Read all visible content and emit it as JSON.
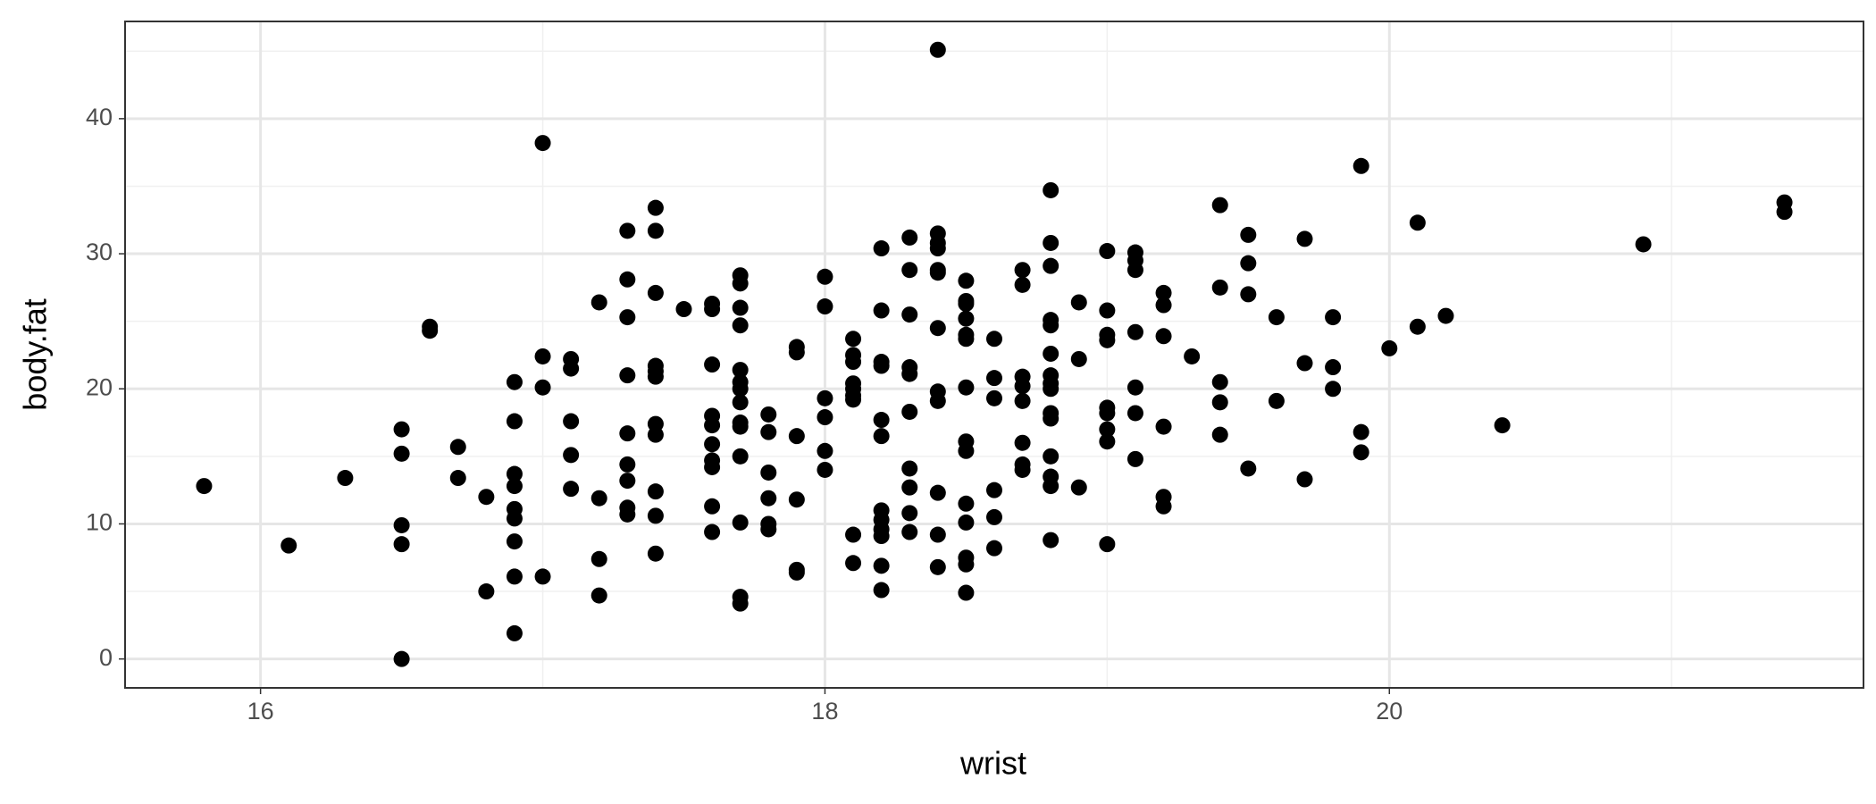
{
  "chart_data": {
    "type": "scatter",
    "x_label": "wrist",
    "y_label": "body.fat",
    "xlim": [
      15.52,
      21.68
    ],
    "ylim": [
      -2.14,
      47.2
    ],
    "xticks": [
      16,
      18,
      20
    ],
    "yticks": [
      0,
      10,
      20,
      30,
      40
    ],
    "xminor": [
      17,
      19,
      21
    ],
    "yminor": [
      5,
      15,
      25,
      35,
      45
    ],
    "grid": true,
    "color": "#000000",
    "series": [
      {
        "color": "#000000",
        "x": [
          15.8,
          16.1,
          16.3,
          16.5,
          16.5,
          16.5,
          16.5,
          16.5,
          16.6,
          16.6,
          16.7,
          16.7,
          16.8,
          16.8,
          16.9,
          16.9,
          16.9,
          16.9,
          16.9,
          16.9,
          16.9,
          16.9,
          16.9,
          17.0,
          17.0,
          17.0,
          17.0,
          17.1,
          17.1,
          17.1,
          17.1,
          17.1,
          17.2,
          17.2,
          17.2,
          17.2,
          17.3,
          17.3,
          17.3,
          17.3,
          17.3,
          17.3,
          17.3,
          17.3,
          17.3,
          17.4,
          17.4,
          17.4,
          17.4,
          17.4,
          17.4,
          17.4,
          17.4,
          17.4,
          17.4,
          17.4,
          17.5,
          17.6,
          17.6,
          17.6,
          17.6,
          17.6,
          17.6,
          17.6,
          17.6,
          17.6,
          17.6,
          17.7,
          17.7,
          17.7,
          17.7,
          17.7,
          17.7,
          17.7,
          17.7,
          17.7,
          17.7,
          17.7,
          17.7,
          17.7,
          17.7,
          17.8,
          17.8,
          17.8,
          17.8,
          17.8,
          17.8,
          17.9,
          17.9,
          17.9,
          17.9,
          17.9,
          17.9,
          18.0,
          18.0,
          18.0,
          18.0,
          18.0,
          18.0,
          18.1,
          18.1,
          18.1,
          18.1,
          18.1,
          18.1,
          18.1,
          18.1,
          18.1,
          18.2,
          18.2,
          18.2,
          18.2,
          18.2,
          18.2,
          18.2,
          18.2,
          18.2,
          18.2,
          18.2,
          18.2,
          18.3,
          18.3,
          18.3,
          18.3,
          18.3,
          18.3,
          18.3,
          18.3,
          18.3,
          18.3,
          18.4,
          18.4,
          18.4,
          18.4,
          18.4,
          18.4,
          18.4,
          18.4,
          18.4,
          18.4,
          18.4,
          18.4,
          18.5,
          18.5,
          18.5,
          18.5,
          18.5,
          18.5,
          18.5,
          18.5,
          18.5,
          18.5,
          18.5,
          18.5,
          18.5,
          18.5,
          18.6,
          18.6,
          18.6,
          18.6,
          18.6,
          18.6,
          18.7,
          18.7,
          18.7,
          18.7,
          18.7,
          18.7,
          18.7,
          18.7,
          18.8,
          18.8,
          18.8,
          18.8,
          18.8,
          18.8,
          18.8,
          18.8,
          18.8,
          18.8,
          18.8,
          18.8,
          18.8,
          18.8,
          18.8,
          18.9,
          18.9,
          18.9,
          19.0,
          19.0,
          19.0,
          19.0,
          19.0,
          19.0,
          19.0,
          19.0,
          19.0,
          19.1,
          19.1,
          19.1,
          19.1,
          19.1,
          19.1,
          19.1,
          19.2,
          19.2,
          19.2,
          19.2,
          19.2,
          19.2,
          19.3,
          19.4,
          19.4,
          19.4,
          19.4,
          19.4,
          19.5,
          19.5,
          19.5,
          19.5,
          19.6,
          19.6,
          19.7,
          19.7,
          19.7,
          19.8,
          19.8,
          19.8,
          19.9,
          19.9,
          19.9,
          20.0,
          20.1,
          20.1,
          20.2,
          20.4,
          20.9,
          21.4,
          21.4
        ],
        "values": [
          12.8,
          8.4,
          13.4,
          17.0,
          15.2,
          9.9,
          8.5,
          0,
          24.6,
          24.3,
          15.7,
          13.4,
          12.0,
          5.0,
          20.5,
          17.6,
          13.7,
          12.8,
          11.1,
          10.4,
          8.7,
          6.1,
          1.9,
          38.2,
          22.4,
          20.1,
          6.1,
          22.2,
          21.5,
          17.6,
          15.1,
          12.6,
          26.4,
          11.9,
          7.4,
          4.7,
          31.7,
          28.1,
          25.3,
          21.0,
          16.7,
          14.4,
          13.2,
          11.2,
          10.7,
          33.4,
          31.7,
          27.1,
          21.7,
          21.3,
          20.9,
          17.4,
          16.6,
          12.4,
          10.6,
          7.8,
          25.9,
          26.3,
          25.9,
          21.8,
          18.0,
          17.3,
          15.9,
          14.7,
          14.2,
          11.3,
          9.4,
          28.4,
          27.8,
          26.0,
          24.7,
          21.4,
          20.5,
          20.0,
          19.0,
          17.5,
          17.2,
          15.0,
          10.1,
          4.6,
          4.1,
          18.1,
          16.8,
          13.8,
          11.9,
          10.0,
          9.6,
          23.1,
          22.7,
          16.5,
          11.8,
          6.6,
          6.4,
          28.3,
          26.1,
          19.3,
          17.9,
          15.4,
          14.0,
          23.7,
          22.5,
          22.0,
          20.4,
          20.0,
          19.5,
          19.2,
          9.2,
          7.1,
          30.4,
          25.8,
          22.0,
          21.7,
          17.7,
          16.5,
          11.0,
          10.3,
          9.6,
          9.1,
          6.9,
          5.1,
          31.2,
          28.8,
          25.5,
          21.6,
          21.1,
          18.3,
          14.1,
          12.7,
          10.8,
          9.4,
          45.1,
          31.5,
          30.8,
          30.4,
          28.8,
          28.6,
          24.5,
          19.8,
          19.1,
          12.3,
          9.2,
          6.8,
          28.0,
          26.5,
          26.3,
          25.2,
          24.0,
          23.7,
          20.1,
          16.1,
          15.4,
          11.5,
          10.1,
          7.5,
          7.0,
          4.9,
          23.7,
          20.8,
          19.3,
          12.5,
          10.5,
          8.2,
          28.8,
          27.7,
          20.9,
          20.2,
          19.1,
          16.0,
          14.4,
          14.0,
          34.7,
          30.8,
          29.1,
          25.1,
          24.7,
          22.6,
          21.0,
          20.4,
          20.0,
          18.2,
          17.8,
          15.0,
          13.5,
          12.8,
          8.8,
          26.4,
          22.2,
          12.7,
          30.2,
          25.8,
          24.0,
          23.6,
          18.6,
          18.2,
          17.0,
          16.1,
          8.5,
          30.1,
          29.5,
          28.8,
          24.2,
          20.1,
          18.2,
          14.8,
          27.1,
          26.2,
          23.9,
          17.2,
          12.0,
          11.3,
          22.4,
          33.6,
          27.5,
          20.5,
          19.0,
          16.6,
          31.4,
          29.3,
          27.0,
          14.1,
          25.3,
          19.1,
          31.1,
          21.9,
          13.3,
          25.3,
          21.6,
          20.0,
          36.5,
          16.8,
          15.3,
          23.0,
          32.3,
          24.6,
          25.4,
          17.3,
          30.7,
          33.8,
          33.1
        ]
      }
    ]
  }
}
